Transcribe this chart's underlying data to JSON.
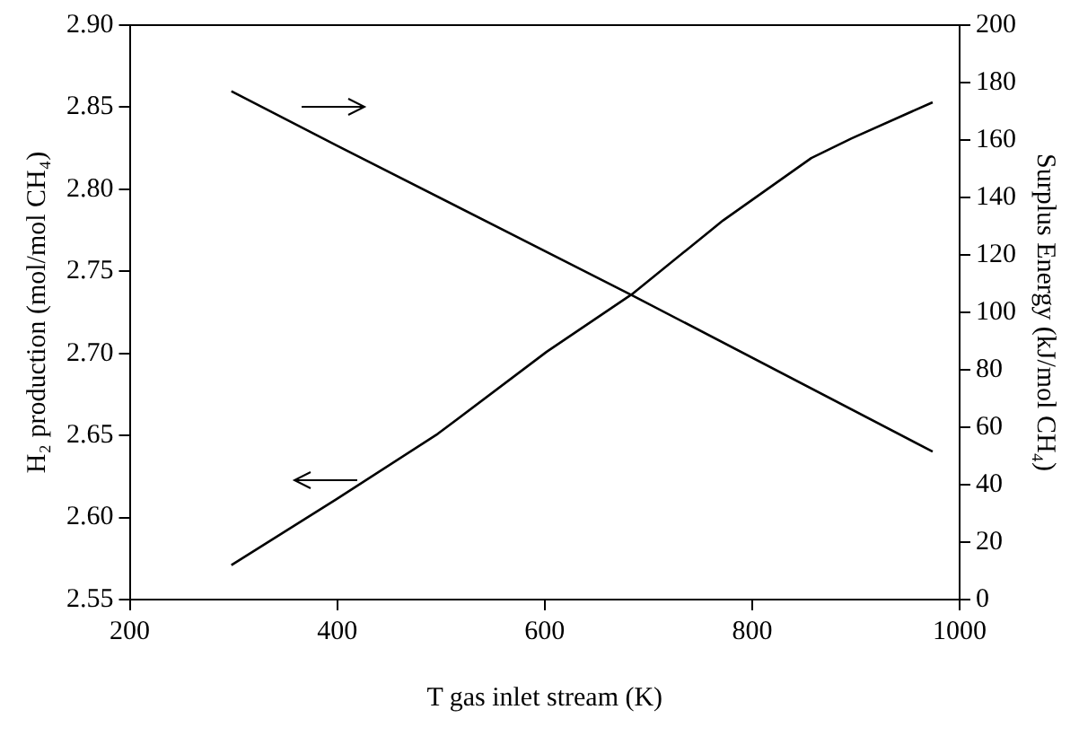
{
  "chart_data": {
    "type": "line",
    "xlabel": "T gas inlet stream (K)",
    "ylabel": "H₂ production (mol/mol CH₄)",
    "y2label": "Surplus Energy (kJ/mol CH₄)",
    "xlim": [
      200,
      1000
    ],
    "xticks": [
      200,
      400,
      600,
      800,
      1000
    ],
    "ylim": [
      2.55,
      2.9
    ],
    "yticks": [
      2.55,
      {
        "value": 2.6,
        "label": "2.60"
      },
      2.65,
      {
        "value": 2.7,
        "label": "2.70"
      },
      2.75,
      {
        "value": 2.8,
        "label": "2.80"
      },
      2.85,
      {
        "value": 2.9,
        "label": "2.90"
      }
    ],
    "y2lim": [
      0,
      200
    ],
    "y2ticks": [
      0,
      20,
      40,
      60,
      80,
      100,
      120,
      140,
      160,
      180,
      200
    ],
    "grid": false,
    "legend": false,
    "marker": "none",
    "line_style": "solid",
    "series": [
      {
        "color": "#000000",
        "x": [
          298,
          399,
          497,
          602,
          684,
          772,
          857,
          896,
          974
        ],
        "values": [
          2.571,
          2.611,
          2.651,
          2.701,
          2.736,
          2.781,
          2.819,
          2.831,
          2.853
        ]
      },
      {
        "color": "#000000",
        "axis": "y2",
        "x": [
          298,
          400,
          684,
          974
        ],
        "values": [
          177,
          158,
          106,
          51.5
        ]
      }
    ]
  }
}
